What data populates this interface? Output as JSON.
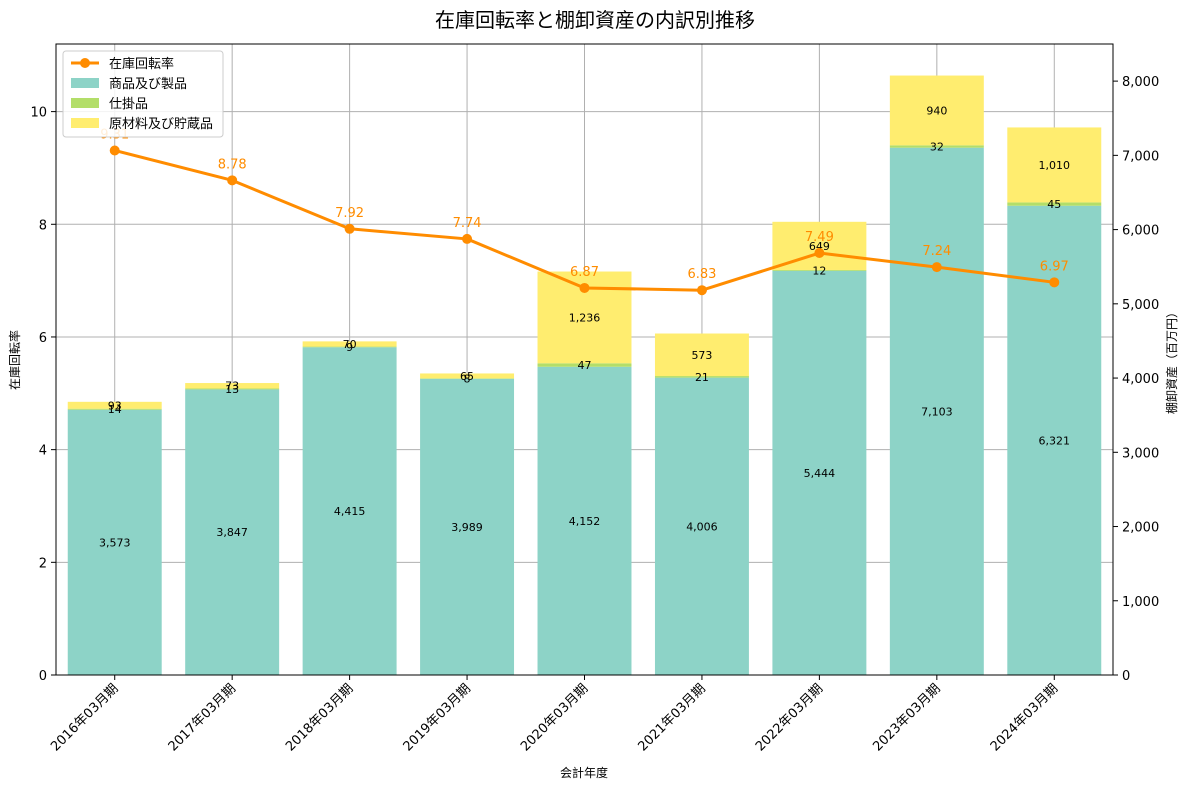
{
  "chart_data": {
    "type": "bar",
    "title": "在庫回転率と棚卸資産の内訳別推移",
    "xlabel": "会計年度",
    "ylabel_left": "在庫回転率",
    "ylabel_right": "棚卸資産（百万円）",
    "categories": [
      "2016年03月期",
      "2017年03月期",
      "2018年03月期",
      "2019年03月期",
      "2020年03月期",
      "2021年03月期",
      "2022年03月期",
      "2023年03月期",
      "2024年03月期"
    ],
    "ylim_left": [
      0,
      11.2
    ],
    "ylim_right": [
      0,
      8500
    ],
    "left_ticks": [
      "0",
      "2",
      "4",
      "6",
      "8",
      "10"
    ],
    "right_ticks": [
      "0",
      "1,000",
      "2,000",
      "3,000",
      "4,000",
      "5,000",
      "6,000",
      "7,000",
      "8,000"
    ],
    "grid": true,
    "legend_position": "top-left",
    "series": [
      {
        "name": "商品及び製品",
        "kind": "bar",
        "axis": "right",
        "color": "#8dd3c7",
        "values": [
          3573,
          3847,
          4415,
          3989,
          4152,
          4006,
          5444,
          7103,
          6321
        ],
        "labels": [
          "3,573",
          "3,847",
          "4,415",
          "3,989",
          "4,152",
          "4,006",
          "5,444",
          "7,103",
          "6,321"
        ]
      },
      {
        "name": "仕掛品",
        "kind": "bar",
        "axis": "right",
        "color": "#b3de69",
        "values": [
          14,
          13,
          9,
          8,
          47,
          21,
          12,
          32,
          45
        ],
        "labels": [
          "14",
          "13",
          "9",
          "8",
          "47",
          "21",
          "12",
          "32",
          "45"
        ]
      },
      {
        "name": "原材料及び貯蔵品",
        "kind": "bar",
        "axis": "right",
        "color": "#ffed6f",
        "values": [
          93,
          73,
          70,
          65,
          1236,
          573,
          649,
          940,
          1010
        ],
        "labels": [
          "93",
          "73",
          "70",
          "65",
          "1,236",
          "573",
          "649",
          "940",
          "1,010"
        ]
      },
      {
        "name": "在庫回転率",
        "kind": "line",
        "axis": "left",
        "color": "#ff8c00",
        "values": [
          9.31,
          8.78,
          7.92,
          7.74,
          6.87,
          6.83,
          7.49,
          7.24,
          6.97
        ],
        "labels": [
          "9.31",
          "8.78",
          "7.92",
          "7.74",
          "6.87",
          "6.83",
          "7.49",
          "7.24",
          "6.97"
        ]
      }
    ]
  }
}
